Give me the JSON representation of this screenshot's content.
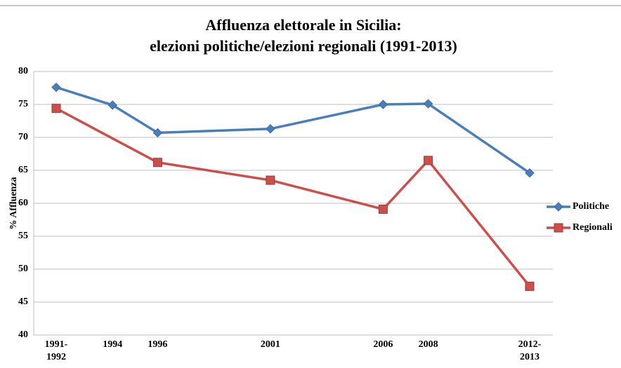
{
  "chart_data": {
    "type": "line",
    "title": [
      "Affluenza elettorale in Sicilia:",
      "elezioni politiche/elezioni regionali (1991-2013)"
    ],
    "y_label": "% Affluenza",
    "categories": [
      "1991-1992",
      "1994",
      "1996",
      "2001",
      "2006",
      "2008",
      "2012-2013"
    ],
    "series": [
      {
        "name": "Politiche",
        "color": "#4a7ebb",
        "marker": "diamond",
        "values": [
          77.6,
          74.9,
          70.7,
          71.3,
          75.0,
          75.1,
          64.6
        ]
      },
      {
        "name": "Regionali",
        "color": "#cc4f4c",
        "marker": "square",
        "values": [
          74.4,
          null,
          66.2,
          63.5,
          59.1,
          66.5,
          47.4
        ]
      }
    ],
    "connect_nulls": true,
    "ylim": [
      40,
      80
    ],
    "yticks": [
      40,
      45,
      50,
      55,
      60,
      65,
      70,
      75,
      80
    ],
    "grid": true,
    "legend": "right"
  }
}
